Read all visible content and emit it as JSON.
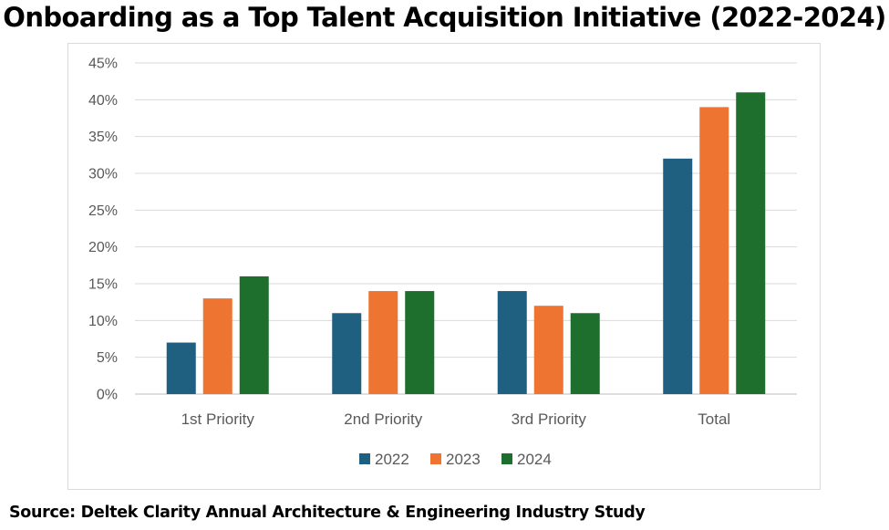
{
  "title": "Onboarding as a Top Talent Acquisition Initiative (2022-2024)",
  "source": "Source: Deltek Clarity Annual Architecture & Engineering Industry Study",
  "chart_data": {
    "type": "bar",
    "categories": [
      "1st Priority",
      "2nd Priority",
      "3rd Priority",
      "Total"
    ],
    "series": [
      {
        "name": "2022",
        "color": "#1f5f80",
        "values": [
          7,
          11,
          14,
          32
        ]
      },
      {
        "name": "2023",
        "color": "#ed7431",
        "values": [
          13,
          14,
          12,
          39
        ]
      },
      {
        "name": "2024",
        "color": "#1e6e2d",
        "values": [
          16,
          14,
          11,
          41
        ]
      }
    ],
    "yunit": "%",
    "ylim": [
      0,
      45
    ],
    "yticks": [
      0,
      5,
      10,
      15,
      20,
      25,
      30,
      35,
      40,
      45
    ],
    "grid": true,
    "legend_position": "bottom"
  }
}
